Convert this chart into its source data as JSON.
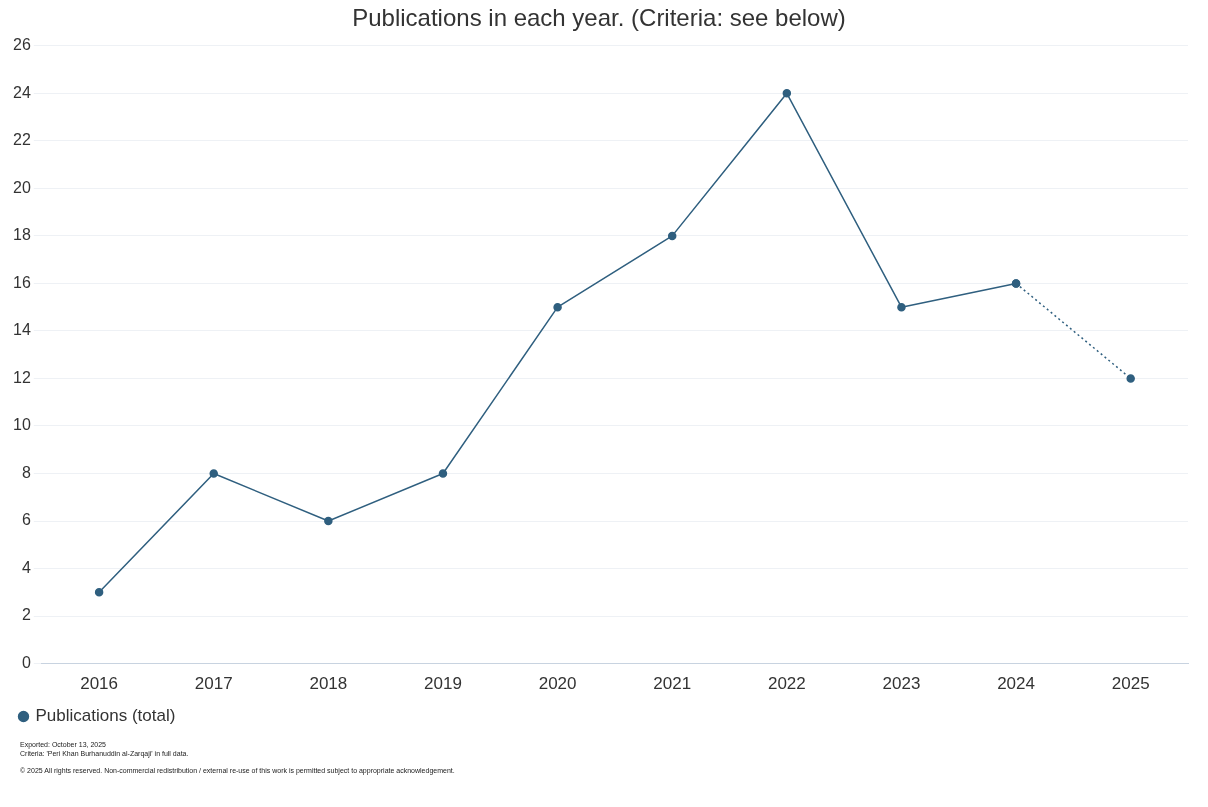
{
  "chart_data": {
    "type": "line",
    "title": "Publications in each year. (Criteria: see below)",
    "categories": [
      "2016",
      "2017",
      "2018",
      "2019",
      "2020",
      "2021",
      "2022",
      "2023",
      "2024",
      "2025"
    ],
    "series": [
      {
        "name": "Publications (total)",
        "color": "#2f5f7f",
        "values": [
          3,
          8,
          6,
          8,
          15,
          18,
          24,
          15,
          16,
          null
        ],
        "line_style": "solid",
        "marker": "circle"
      },
      {
        "color": "#2f5f7f",
        "values": [
          null,
          null,
          null,
          null,
          null,
          null,
          null,
          null,
          16,
          12
        ],
        "line_style": "dotted",
        "marker": "circle"
      }
    ],
    "ylim": [
      0,
      26
    ],
    "yticks": [
      0,
      2,
      4,
      6,
      8,
      10,
      12,
      14,
      16,
      18,
      20,
      22,
      24,
      26
    ],
    "grid": "y",
    "legend": "bottom left",
    "annotations": [
      "Exported: October 13, 2025",
      "Criteria: 'Peri Khan Burhanuddin al-Zarqaji' in full data.",
      "© 2025 All rights reserved. Non-commercial redistribution / external re-use of this work is permitted subject to appropriate acknowledgement."
    ]
  }
}
